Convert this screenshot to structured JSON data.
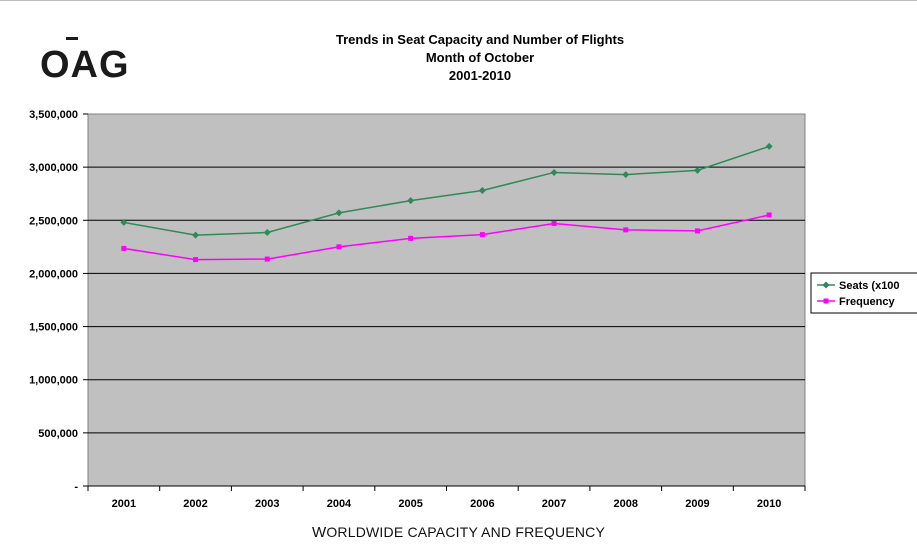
{
  "logo": {
    "text": "OAG"
  },
  "caption": {
    "first": "W",
    "rest": "ORLDWIDE CAPACITY AND FREQUENCY"
  },
  "chart_data": {
    "type": "line",
    "title": [
      "Trends in Seat Capacity and Number of Flights",
      "Month of October",
      "2001-2010"
    ],
    "xlabel": "",
    "ylabel": "",
    "categories": [
      "2001",
      "2002",
      "2003",
      "2004",
      "2005",
      "2006",
      "2007",
      "2008",
      "2009",
      "2010"
    ],
    "ylim": [
      0,
      3500000
    ],
    "yticks": [
      0,
      500000,
      1000000,
      1500000,
      2000000,
      2500000,
      3000000,
      3500000
    ],
    "ytick_labels": [
      "-",
      "500,000",
      "1,000,000",
      "1,500,000",
      "2,000,000",
      "2,500,000",
      "3,000,000",
      "3,500,000"
    ],
    "grid": true,
    "legend": "right",
    "series": [
      {
        "name": "Seats (x100",
        "color": "#2e8b57",
        "marker": "diamond",
        "values": [
          2480000,
          2360000,
          2385000,
          2570000,
          2685000,
          2780000,
          2950000,
          2930000,
          2970000,
          3195000
        ]
      },
      {
        "name": "Frequency",
        "color": "#ff00ff",
        "marker": "square",
        "values": [
          2235000,
          2130000,
          2135000,
          2250000,
          2330000,
          2365000,
          2470000,
          2410000,
          2400000,
          2550000
        ]
      }
    ]
  }
}
